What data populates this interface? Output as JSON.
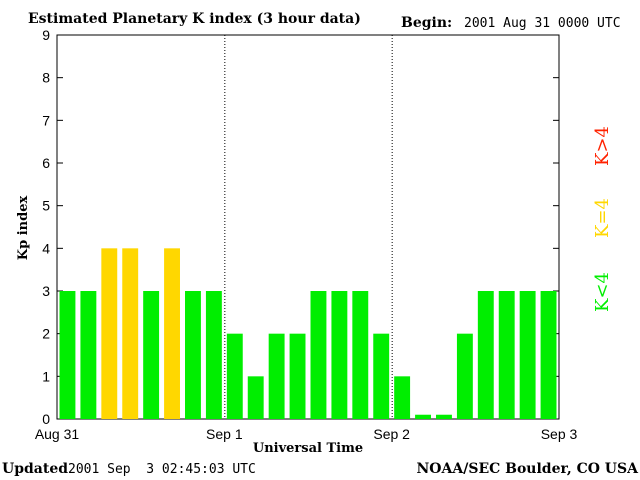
{
  "title": "Estimated Planetary K index (3 hour data)",
  "begin_label": "Begin:",
  "begin_value": "2001 Aug 31 0000 UTC",
  "updated_label": "Updated",
  "updated_value": "2001 Sep  3 02:45:03 UTC",
  "credit": "NOAA/SEC Boulder, CO USA",
  "legend": [
    {
      "text": "K<4",
      "color": "#00ee00"
    },
    {
      "text": "K=4",
      "color": "#ffd700"
    },
    {
      "text": "K>4",
      "color": "#ff2200"
    }
  ],
  "colors": {
    "green": "#00ee00",
    "yellow": "#ffd700",
    "red": "#ff2200"
  },
  "chart_data": {
    "type": "bar",
    "xlabel": "Universal Time",
    "ylabel": "Kp index",
    "ylim": [
      0,
      9
    ],
    "yticks": [
      0,
      1,
      2,
      3,
      4,
      5,
      6,
      7,
      8,
      9
    ],
    "x_ticks": [
      "Aug 31",
      "Sep 1",
      "Sep 2",
      "Sep 3"
    ],
    "day_separators": [
      "Sep 1",
      "Sep 2"
    ],
    "bars_per_day": 8,
    "values": [
      3,
      3,
      4,
      4,
      3,
      4,
      3,
      3,
      2,
      1,
      2,
      2,
      3,
      3,
      3,
      2,
      1,
      0.1,
      0.1,
      2,
      3,
      3,
      3,
      3
    ],
    "color_rule": "K<4 green, K=4 yellow, K>4 red"
  }
}
